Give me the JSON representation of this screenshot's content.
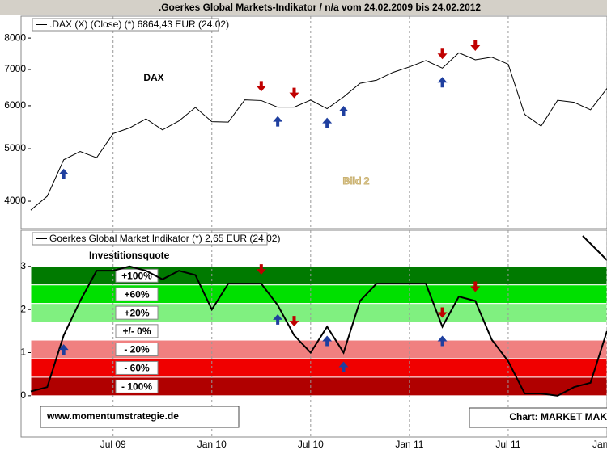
{
  "title": ".Goerkes Global Markets-Indikator / n/a vom 24.02.2009 bis 24.02.2012",
  "chart_data": [
    {
      "type": "line",
      "log_scale": true,
      "legend": ".DAX (X) (Close) (*) 6864,43 EUR (24.02)",
      "annotations": [
        "DAX",
        "Bild 2"
      ],
      "x": [
        "2009-02",
        "2009-03",
        "2009-04",
        "2009-05",
        "2009-06",
        "2009-07",
        "2009-08",
        "2009-09",
        "2009-10",
        "2009-11",
        "2009-12",
        "2010-01",
        "2010-02",
        "2010-03",
        "2010-04",
        "2010-05",
        "2010-06",
        "2010-07",
        "2010-08",
        "2010-09",
        "2010-10",
        "2010-11",
        "2010-12",
        "2011-01",
        "2011-02",
        "2011-03",
        "2011-04",
        "2011-05",
        "2011-06",
        "2011-07",
        "2011-08",
        "2011-09",
        "2011-10",
        "2011-11",
        "2011-12",
        "2012-01"
      ],
      "series": [
        {
          "name": "DAX",
          "color": "#000000",
          "values": [
            3850,
            4085,
            4770,
            4940,
            4810,
            5330,
            5460,
            5675,
            5415,
            5625,
            5957,
            5608,
            5598,
            6153,
            6135,
            5964,
            5966,
            6148,
            5925,
            6229,
            6601,
            6688,
            6914,
            7077,
            7272,
            7041,
            7514,
            7294,
            7376,
            7159,
            5785,
            5502,
            6141,
            6089,
            5898,
            6458
          ]
        }
      ],
      "signals": [
        {
          "x": "2009-04",
          "direction": "up"
        },
        {
          "x": "2010-04",
          "direction": "down"
        },
        {
          "x": "2010-05",
          "direction": "up"
        },
        {
          "x": "2010-06",
          "direction": "down"
        },
        {
          "x": "2010-08",
          "direction": "up"
        },
        {
          "x": "2010-09",
          "direction": "up"
        },
        {
          "x": "2011-03",
          "direction": "down"
        },
        {
          "x": "2011-03",
          "direction": "up"
        },
        {
          "x": "2011-05",
          "direction": "down"
        }
      ],
      "xlim": [
        "2009-02",
        "2012-01"
      ],
      "ylim": [
        3560,
        8780
      ],
      "yticks": [
        4000,
        5000,
        6000,
        7000,
        8000
      ],
      "grid": true
    },
    {
      "type": "line",
      "legend": "Goerkes Global Market Indikator (*) 2,65 EUR (24.02)",
      "annotations": [
        "Investitionsquote",
        "www.momentumstrategie.de",
        "Chart: MARKET MAK"
      ],
      "bands": [
        {
          "label": "+100%",
          "from": 2.57,
          "to": 3,
          "color": "#007a00"
        },
        {
          "label": "+60%",
          "from": 2.14,
          "to": 2.57,
          "color": "#00e000"
        },
        {
          "label": "+20%",
          "from": 1.71,
          "to": 2.14,
          "color": "#80f080"
        },
        {
          "label": "+/- 0%",
          "from": 1.29,
          "to": 1.71,
          "color": "#ffffff"
        },
        {
          "label": "- 20%",
          "from": 0.86,
          "to": 1.29,
          "color": "#f08080"
        },
        {
          "label": "- 60%",
          "from": 0.43,
          "to": 0.86,
          "color": "#f00000"
        },
        {
          "label": "- 100%",
          "from": 0,
          "to": 0.43,
          "color": "#b00000"
        }
      ],
      "x": [
        "2009-02",
        "2009-03",
        "2009-04",
        "2009-05",
        "2009-06",
        "2009-07",
        "2009-08",
        "2009-09",
        "2009-10",
        "2009-11",
        "2009-12",
        "2010-01",
        "2010-02",
        "2010-03",
        "2010-04",
        "2010-05",
        "2010-06",
        "2010-07",
        "2010-08",
        "2010-09",
        "2010-10",
        "2010-11",
        "2010-12",
        "2011-01",
        "2011-02",
        "2011-03",
        "2011-04",
        "2011-05",
        "2011-06",
        "2011-07",
        "2011-08",
        "2011-09",
        "2011-10",
        "2011-11",
        "2011-12",
        "2012-01"
      ],
      "series": [
        {
          "name": "Goerkes Global Market Indikator",
          "color": "#000000",
          "values": [
            0.1,
            0.2,
            1.4,
            2.2,
            2.9,
            2.9,
            3.0,
            2.9,
            2.7,
            2.9,
            2.8,
            2.0,
            2.6,
            2.6,
            2.6,
            2.1,
            1.4,
            1.0,
            1.6,
            1.0,
            2.2,
            2.6,
            2.6,
            2.6,
            2.6,
            1.6,
            2.3,
            2.2,
            1.3,
            0.8,
            0.05,
            0.05,
            0.0,
            0.2,
            0.3,
            1.5
          ]
        }
      ],
      "signals": [
        {
          "x": "2009-04",
          "direction": "up"
        },
        {
          "x": "2010-04",
          "direction": "down"
        },
        {
          "x": "2010-05",
          "direction": "up"
        },
        {
          "x": "2010-06",
          "direction": "down"
        },
        {
          "x": "2010-08",
          "direction": "up"
        },
        {
          "x": "2010-09",
          "direction": "up"
        },
        {
          "x": "2011-03",
          "direction": "down"
        },
        {
          "x": "2011-03",
          "direction": "up"
        },
        {
          "x": "2011-05",
          "direction": "down"
        }
      ],
      "xlim": [
        "2009-02",
        "2012-01"
      ],
      "xticks": [
        {
          "value": "2009-07",
          "label": "Jul 09"
        },
        {
          "value": "2010-01",
          "label": "Jan 10"
        },
        {
          "value": "2010-07",
          "label": "Jul 10"
        },
        {
          "value": "2011-01",
          "label": "Jan 11"
        },
        {
          "value": "2011-07",
          "label": "Jul 11"
        },
        {
          "value": "2012-01",
          "label": "Jan 12"
        }
      ],
      "ylim": [
        -0.94,
        3.84
      ],
      "yticks": [
        0,
        1,
        2,
        3
      ],
      "grid": true
    }
  ]
}
